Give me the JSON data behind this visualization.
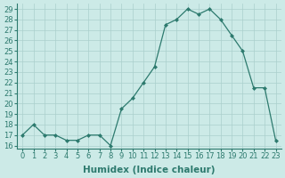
{
  "x": [
    0,
    1,
    2,
    3,
    4,
    5,
    6,
    7,
    8,
    9,
    10,
    11,
    12,
    13,
    14,
    15,
    16,
    17,
    18,
    19,
    20,
    21,
    22,
    23
  ],
  "y": [
    17,
    18,
    17,
    17,
    16.5,
    16.5,
    17,
    17,
    16,
    19.5,
    20.5,
    22,
    23.5,
    27.5,
    28,
    29,
    28.5,
    29,
    28,
    26.5,
    25,
    21.5,
    21.5,
    16.5
  ],
  "line_color": "#2d7a6e",
  "marker": "D",
  "marker_size": 2,
  "bg_color": "#cceae7",
  "grid_color": "#aacfcc",
  "xlabel": "Humidex (Indice chaleur)",
  "xlabel_fontsize": 7.5,
  "ylabel_ticks": [
    16,
    17,
    18,
    19,
    20,
    21,
    22,
    23,
    24,
    25,
    26,
    27,
    28,
    29
  ],
  "xlim": [
    -0.5,
    23.5
  ],
  "ylim": [
    15.7,
    29.5
  ],
  "tick_fontsize": 6,
  "title": ""
}
